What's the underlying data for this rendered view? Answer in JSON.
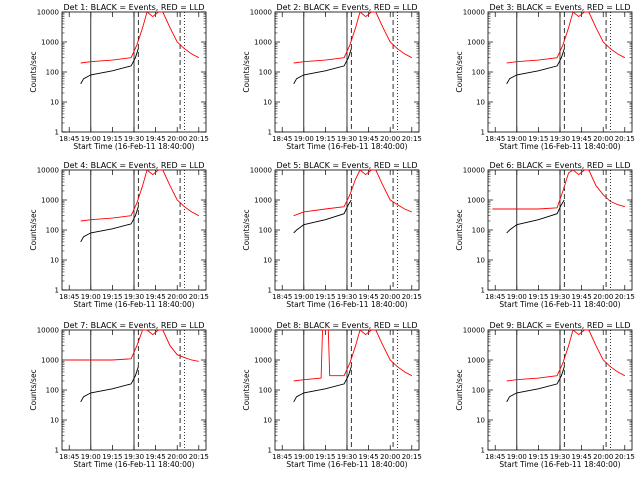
{
  "chart_data": [
    {
      "type": "line",
      "title": "Det 1: BLACK = Events, RED = LLD",
      "xlabel": "Start Time (16-Feb-11 18:40:00)",
      "ylabel": "Counts/sec",
      "yscale": "log",
      "ylim": [
        1,
        10000
      ],
      "y_tick_labels": [
        "1",
        "10",
        "100",
        "1000",
        "10000"
      ],
      "x_tick_labels": [
        "18:45",
        "19:00",
        "19:15",
        "19:30",
        "19:45",
        "20:00",
        "20:15"
      ],
      "series": [
        {
          "color": "#ff0000",
          "x": [
            "18:53",
            "19:00",
            "19:15",
            "19:28",
            "19:32",
            "19:36",
            "19:39",
            "19:43",
            "19:47",
            "19:50",
            "19:55",
            "20:00",
            "20:05",
            "20:10",
            "20:15"
          ],
          "y": [
            200,
            220,
            250,
            300,
            800,
            3000,
            10000,
            7000,
            10000,
            10000,
            3000,
            1000,
            600,
            400,
            300
          ]
        },
        {
          "color": "#000000",
          "x": [
            "18:53",
            "18:55",
            "19:00",
            "19:15",
            "19:28",
            "19:31",
            "19:33"
          ],
          "y": [
            40,
            60,
            80,
            110,
            160,
            300,
            600
          ]
        }
      ],
      "vertical_lines": [
        {
          "x": "19:00",
          "style": "solid"
        },
        {
          "x": "19:30",
          "style": "solid"
        },
        {
          "x": "19:33",
          "style": "dashed"
        },
        {
          "x": "20:02",
          "style": "dashed"
        },
        {
          "x": "20:05",
          "style": "dotted"
        }
      ]
    },
    {
      "type": "line",
      "title": "Det 2: BLACK = Events, RED = LLD",
      "xlabel": "Start Time (16-Feb-11 18:40:00)",
      "ylabel": "Counts/sec",
      "yscale": "log",
      "ylim": [
        1,
        10000
      ],
      "y_tick_labels": [
        "1",
        "10",
        "100",
        "1000",
        "10000"
      ],
      "x_tick_labels": [
        "18:45",
        "19:00",
        "19:15",
        "19:30",
        "19:45",
        "20:00",
        "20:15"
      ],
      "series": [
        {
          "color": "#ff0000",
          "x": [
            "18:53",
            "19:00",
            "19:15",
            "19:28",
            "19:32",
            "19:36",
            "19:39",
            "19:43",
            "19:47",
            "19:50",
            "19:55",
            "20:00",
            "20:05",
            "20:10",
            "20:15"
          ],
          "y": [
            200,
            220,
            250,
            300,
            800,
            3000,
            10000,
            7000,
            10000,
            10000,
            3000,
            1000,
            600,
            400,
            300
          ]
        },
        {
          "color": "#000000",
          "x": [
            "18:53",
            "18:55",
            "19:00",
            "19:15",
            "19:28",
            "19:31",
            "19:33"
          ],
          "y": [
            40,
            60,
            80,
            110,
            160,
            300,
            600
          ]
        }
      ],
      "vertical_lines": [
        {
          "x": "19:00",
          "style": "solid"
        },
        {
          "x": "19:30",
          "style": "solid"
        },
        {
          "x": "19:33",
          "style": "dashed"
        },
        {
          "x": "20:02",
          "style": "dashed"
        },
        {
          "x": "20:05",
          "style": "dotted"
        }
      ]
    },
    {
      "type": "line",
      "title": "Det 3: BLACK = Events, RED = LLD",
      "xlabel": "Start Time (16-Feb-11 18:40:00)",
      "ylabel": "Counts/sec",
      "yscale": "log",
      "ylim": [
        1,
        10000
      ],
      "y_tick_labels": [
        "1",
        "10",
        "100",
        "1000",
        "10000"
      ],
      "x_tick_labels": [
        "18:45",
        "19:00",
        "19:15",
        "19:30",
        "19:45",
        "20:00",
        "20:15"
      ],
      "series": [
        {
          "color": "#ff0000",
          "x": [
            "18:53",
            "19:00",
            "19:15",
            "19:28",
            "19:32",
            "19:36",
            "19:39",
            "19:43",
            "19:47",
            "19:50",
            "19:55",
            "20:00",
            "20:05",
            "20:10",
            "20:15"
          ],
          "y": [
            200,
            220,
            250,
            300,
            800,
            3000,
            10000,
            7000,
            10000,
            10000,
            3000,
            1000,
            600,
            400,
            300
          ]
        },
        {
          "color": "#000000",
          "x": [
            "18:53",
            "18:55",
            "19:00",
            "19:15",
            "19:28",
            "19:31",
            "19:33"
          ],
          "y": [
            40,
            60,
            80,
            110,
            160,
            300,
            600
          ]
        }
      ],
      "vertical_lines": [
        {
          "x": "19:00",
          "style": "solid"
        },
        {
          "x": "19:30",
          "style": "solid"
        },
        {
          "x": "19:33",
          "style": "dashed"
        },
        {
          "x": "20:02",
          "style": "dashed"
        },
        {
          "x": "20:05",
          "style": "dotted"
        }
      ]
    },
    {
      "type": "line",
      "title": "Det 4: BLACK = Events, RED = LLD",
      "xlabel": "Start Time (16-Feb-11 18:40:00)",
      "ylabel": "Counts/sec",
      "yscale": "log",
      "ylim": [
        1,
        10000
      ],
      "y_tick_labels": [
        "1",
        "10",
        "100",
        "1000",
        "10000"
      ],
      "x_tick_labels": [
        "18:45",
        "19:00",
        "19:15",
        "19:30",
        "19:45",
        "20:00",
        "20:15"
      ],
      "series": [
        {
          "color": "#ff0000",
          "x": [
            "18:53",
            "19:00",
            "19:15",
            "19:28",
            "19:32",
            "19:36",
            "19:39",
            "19:43",
            "19:47",
            "19:50",
            "19:55",
            "20:00",
            "20:05",
            "20:10",
            "20:15"
          ],
          "y": [
            200,
            220,
            250,
            300,
            800,
            3000,
            10000,
            7000,
            10000,
            10000,
            3000,
            1000,
            600,
            400,
            300
          ]
        },
        {
          "color": "#000000",
          "x": [
            "18:53",
            "18:55",
            "19:00",
            "19:15",
            "19:28",
            "19:31",
            "19:33"
          ],
          "y": [
            40,
            60,
            80,
            110,
            160,
            300,
            600
          ]
        }
      ],
      "vertical_lines": [
        {
          "x": "19:00",
          "style": "solid"
        },
        {
          "x": "19:30",
          "style": "solid"
        },
        {
          "x": "19:33",
          "style": "dashed"
        },
        {
          "x": "20:02",
          "style": "dashed"
        },
        {
          "x": "20:05",
          "style": "dotted"
        }
      ]
    },
    {
      "type": "line",
      "title": "Det 5: BLACK = Events, RED = LLD",
      "xlabel": "Start Time (16-Feb-11 18:40:00)",
      "ylabel": "Counts/sec",
      "yscale": "log",
      "ylim": [
        1,
        10000
      ],
      "y_tick_labels": [
        "1",
        "10",
        "100",
        "1000",
        "10000"
      ],
      "x_tick_labels": [
        "18:45",
        "19:00",
        "19:15",
        "19:30",
        "19:45",
        "20:00",
        "20:15"
      ],
      "series": [
        {
          "color": "#ff0000",
          "x": [
            "18:53",
            "19:00",
            "19:15",
            "19:28",
            "19:32",
            "19:36",
            "19:39",
            "19:43",
            "19:47",
            "19:50",
            "19:55",
            "20:00",
            "20:05",
            "20:10",
            "20:15"
          ],
          "y": [
            300,
            400,
            500,
            600,
            1500,
            5000,
            10000,
            7000,
            10000,
            10000,
            3000,
            1000,
            700,
            500,
            400
          ]
        },
        {
          "color": "#000000",
          "x": [
            "18:53",
            "18:55",
            "19:00",
            "19:15",
            "19:28",
            "19:31",
            "19:33"
          ],
          "y": [
            80,
            100,
            150,
            220,
            350,
            700,
            1000
          ]
        }
      ],
      "vertical_lines": [
        {
          "x": "19:00",
          "style": "solid"
        },
        {
          "x": "19:30",
          "style": "solid"
        },
        {
          "x": "19:33",
          "style": "dashed"
        },
        {
          "x": "20:02",
          "style": "dashed"
        },
        {
          "x": "20:05",
          "style": "dotted"
        }
      ]
    },
    {
      "type": "line",
      "title": "Det 6: BLACK = Events, RED = LLD",
      "xlabel": "Start Time (16-Feb-11 18:40:00)",
      "ylabel": "Counts/sec",
      "yscale": "log",
      "ylim": [
        1,
        10000
      ],
      "y_tick_labels": [
        "1",
        "10",
        "100",
        "1000",
        "10000"
      ],
      "x_tick_labels": [
        "18:45",
        "19:00",
        "19:15",
        "19:30",
        "19:45",
        "20:00",
        "20:15"
      ],
      "series": [
        {
          "color": "#ff0000",
          "x": [
            "18:43",
            "19:00",
            "19:15",
            "19:28",
            "19:32",
            "19:36",
            "19:39",
            "19:43",
            "19:47",
            "19:50",
            "19:55",
            "20:00",
            "20:05",
            "20:10",
            "20:15"
          ],
          "y": [
            500,
            500,
            500,
            550,
            2000,
            8000,
            10000,
            7000,
            10000,
            10000,
            3000,
            1500,
            900,
            700,
            600
          ]
        },
        {
          "color": "#000000",
          "x": [
            "18:53",
            "18:55",
            "19:00",
            "19:15",
            "19:28",
            "19:31",
            "19:33"
          ],
          "y": [
            80,
            100,
            150,
            220,
            350,
            700,
            1000
          ]
        }
      ],
      "vertical_lines": [
        {
          "x": "19:00",
          "style": "solid"
        },
        {
          "x": "19:30",
          "style": "solid"
        },
        {
          "x": "19:33",
          "style": "dashed"
        },
        {
          "x": "20:02",
          "style": "dashed"
        },
        {
          "x": "20:05",
          "style": "dotted"
        }
      ]
    },
    {
      "type": "line",
      "title": "Det 7: BLACK = Events, RED = LLD",
      "xlabel": "Start Time (16-Feb-11 18:40:00)",
      "ylabel": "Counts/sec",
      "yscale": "log",
      "ylim": [
        1,
        10000
      ],
      "y_tick_labels": [
        "1",
        "10",
        "100",
        "1000",
        "10000"
      ],
      "x_tick_labels": [
        "18:45",
        "19:00",
        "19:15",
        "19:30",
        "19:45",
        "20:00",
        "20:15"
      ],
      "series": [
        {
          "color": "#ff0000",
          "x": [
            "18:43",
            "19:00",
            "19:15",
            "19:28",
            "19:32",
            "19:36",
            "19:39",
            "19:43",
            "19:47",
            "19:50",
            "19:55",
            "20:00",
            "20:05",
            "20:10",
            "20:15"
          ],
          "y": [
            1000,
            1000,
            1000,
            1100,
            3000,
            10000,
            10000,
            7000,
            10000,
            10000,
            3000,
            1500,
            1200,
            1000,
            900
          ]
        },
        {
          "color": "#000000",
          "x": [
            "18:53",
            "18:55",
            "19:00",
            "19:15",
            "19:28",
            "19:31",
            "19:33"
          ],
          "y": [
            40,
            60,
            80,
            110,
            160,
            300,
            600
          ]
        }
      ],
      "vertical_lines": [
        {
          "x": "19:00",
          "style": "solid"
        },
        {
          "x": "19:30",
          "style": "solid"
        },
        {
          "x": "19:33",
          "style": "dashed"
        },
        {
          "x": "20:02",
          "style": "dashed"
        },
        {
          "x": "20:05",
          "style": "dotted"
        }
      ]
    },
    {
      "type": "line",
      "title": "Det 8: BLACK = Events, RED = LLD",
      "xlabel": "Start Time (16-Feb-11 18:40:00)",
      "ylabel": "Counts/sec",
      "yscale": "log",
      "ylim": [
        1,
        10000
      ],
      "y_tick_labels": [
        "1",
        "10",
        "100",
        "1000",
        "10000"
      ],
      "x_tick_labels": [
        "18:45",
        "19:00",
        "19:15",
        "19:30",
        "19:45",
        "20:00",
        "20:15"
      ],
      "series": [
        {
          "color": "#ff0000",
          "x": [
            "18:53",
            "19:00",
            "19:12",
            "19:13",
            "19:17",
            "19:18",
            "19:28",
            "19:32",
            "19:36",
            "19:39",
            "19:43",
            "19:47",
            "19:50",
            "19:55",
            "20:00",
            "20:05",
            "20:10",
            "20:15"
          ],
          "y": [
            200,
            220,
            250,
            10000,
            10000,
            300,
            300,
            800,
            3000,
            10000,
            7000,
            10000,
            10000,
            3000,
            1000,
            600,
            400,
            300
          ]
        },
        {
          "color": "#000000",
          "x": [
            "18:53",
            "18:55",
            "19:00",
            "19:15",
            "19:28",
            "19:31",
            "19:33"
          ],
          "y": [
            40,
            60,
            80,
            110,
            160,
            300,
            600
          ]
        }
      ],
      "vertical_lines": [
        {
          "x": "19:00",
          "style": "solid"
        },
        {
          "x": "19:30",
          "style": "solid"
        },
        {
          "x": "19:33",
          "style": "dashed"
        },
        {
          "x": "20:02",
          "style": "dashed"
        },
        {
          "x": "20:05",
          "style": "dotted"
        }
      ]
    },
    {
      "type": "line",
      "title": "Det 9: BLACK = Events, RED = LLD",
      "xlabel": "Start Time (16-Feb-11 18:40:00)",
      "ylabel": "Counts/sec",
      "yscale": "log",
      "ylim": [
        1,
        10000
      ],
      "y_tick_labels": [
        "1",
        "10",
        "100",
        "1000",
        "10000"
      ],
      "x_tick_labels": [
        "18:45",
        "19:00",
        "19:15",
        "19:30",
        "19:45",
        "20:00",
        "20:15"
      ],
      "series": [
        {
          "color": "#ff0000",
          "x": [
            "18:53",
            "19:00",
            "19:15",
            "19:28",
            "19:32",
            "19:36",
            "19:39",
            "19:43",
            "19:47",
            "19:50",
            "19:55",
            "20:00",
            "20:05",
            "20:10",
            "20:15"
          ],
          "y": [
            200,
            220,
            250,
            300,
            800,
            3000,
            10000,
            7000,
            10000,
            10000,
            3000,
            1000,
            600,
            400,
            300
          ]
        },
        {
          "color": "#000000",
          "x": [
            "18:53",
            "18:55",
            "19:00",
            "19:15",
            "19:28",
            "19:31",
            "19:33"
          ],
          "y": [
            40,
            60,
            80,
            110,
            160,
            300,
            600
          ]
        }
      ],
      "vertical_lines": [
        {
          "x": "19:00",
          "style": "solid"
        },
        {
          "x": "19:30",
          "style": "solid"
        },
        {
          "x": "19:33",
          "style": "dashed"
        },
        {
          "x": "20:02",
          "style": "dashed"
        },
        {
          "x": "20:05",
          "style": "dotted"
        }
      ]
    }
  ]
}
